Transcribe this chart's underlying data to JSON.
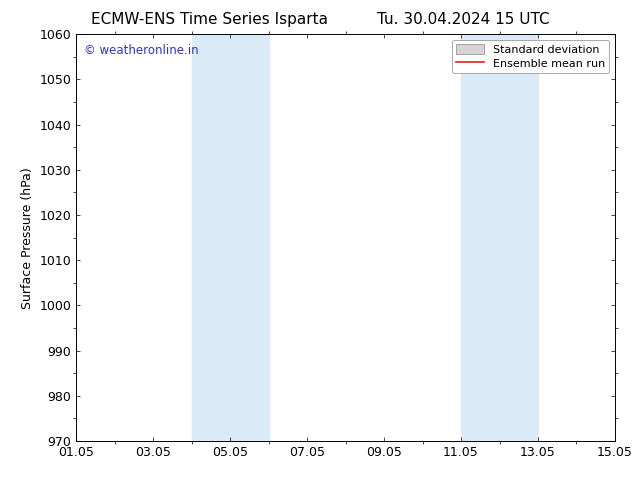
{
  "title_left": "ECMW-ENS Time Series Isparta",
  "title_right": "Tu. 30.04.2024 15 UTC",
  "ylabel": "Surface Pressure (hPa)",
  "ylim": [
    970,
    1060
  ],
  "yticks": [
    970,
    980,
    990,
    1000,
    1010,
    1020,
    1030,
    1040,
    1050,
    1060
  ],
  "xlim": [
    0,
    14
  ],
  "xtick_labels": [
    "01.05",
    "03.05",
    "05.05",
    "07.05",
    "09.05",
    "11.05",
    "13.05",
    "15.05"
  ],
  "xtick_positions": [
    0,
    2,
    4,
    6,
    8,
    10,
    12,
    14
  ],
  "shaded_bands": [
    {
      "x_start": 3.0,
      "x_end": 5.0
    },
    {
      "x_start": 10.0,
      "x_end": 12.0
    }
  ],
  "shade_color": "#daeaf6",
  "watermark_text": "© weatheronline.in",
  "watermark_color": "#3333cc",
  "legend_std_dev_label": "Standard deviation",
  "legend_ensemble_label": "Ensemble mean run",
  "legend_std_dev_facecolor": "#d4d4d4",
  "legend_std_dev_edgecolor": "#888888",
  "legend_ensemble_color": "#dd2222",
  "background_color": "#ffffff",
  "title_fontsize": 11,
  "axis_fontsize": 9,
  "watermark_fontsize": 8.5,
  "legend_fontsize": 8
}
